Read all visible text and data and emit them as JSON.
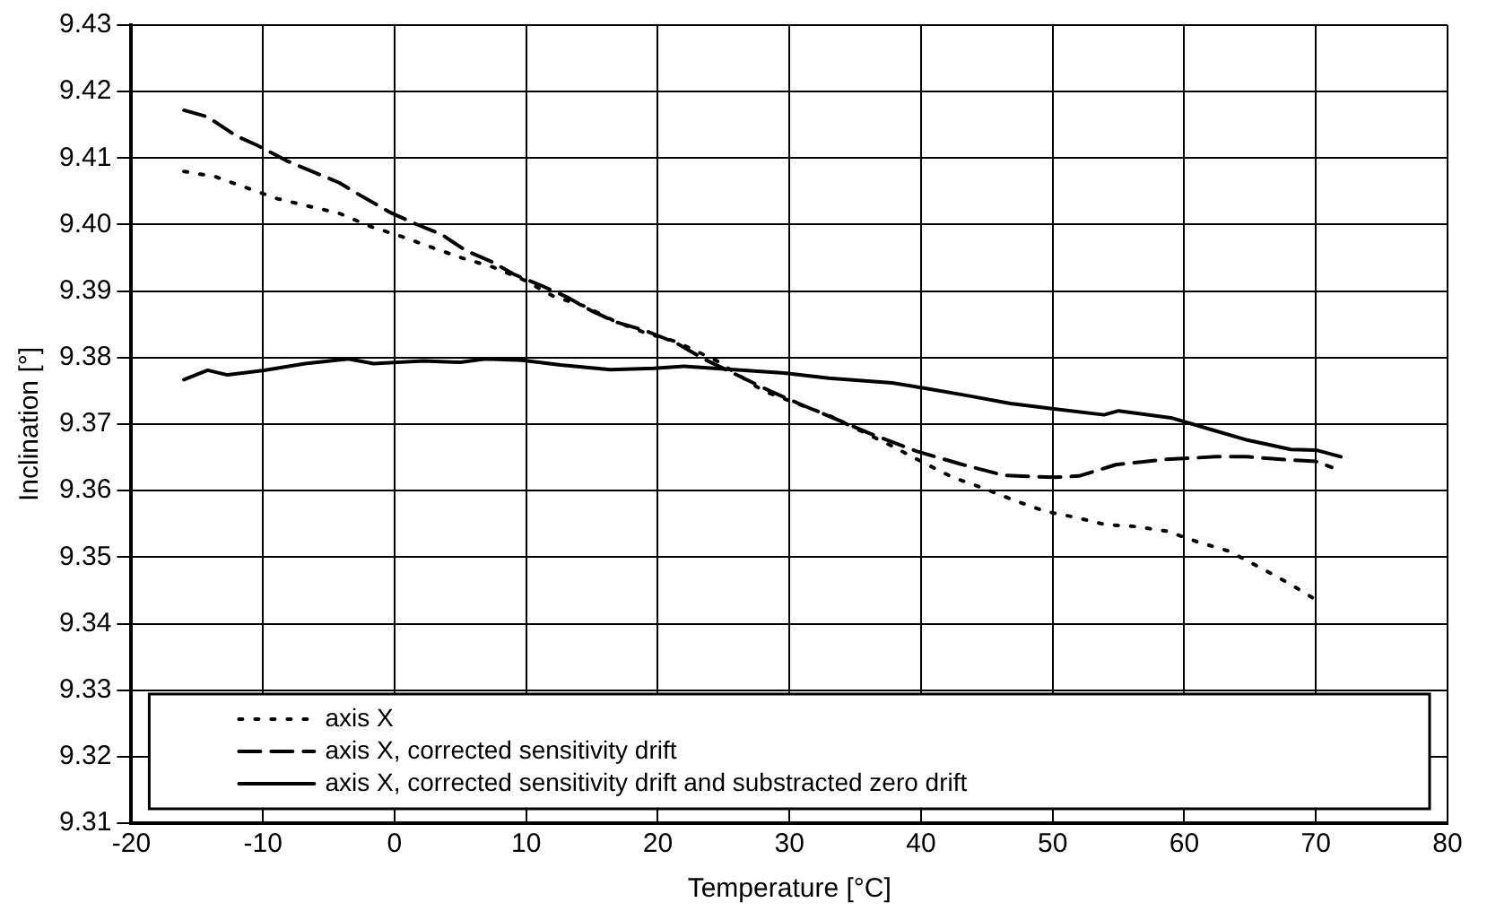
{
  "chart_data": {
    "type": "line",
    "xlabel": "Temperature [°C]",
    "ylabel": "Inclination [°]",
    "xlim": [
      -20,
      80
    ],
    "xticks": [
      -20,
      -10,
      0,
      10,
      20,
      30,
      40,
      50,
      60,
      70,
      80
    ],
    "ylim": [
      9.31,
      9.43
    ],
    "yticks": [
      9.31,
      9.32,
      9.33,
      9.34,
      9.35,
      9.36,
      9.37,
      9.38,
      9.39,
      {
        "value": 9.4,
        "label": "9.40"
      },
      9.41,
      9.42,
      9.43
    ],
    "grid": true,
    "legend": "bottom",
    "marker": "none",
    "series": [
      {
        "name": "axis X",
        "color": "#000000",
        "line_style": "dotted",
        "x": [
          -16,
          -13.6,
          -11.2,
          -8.9,
          -6.6,
          -4.2,
          -1.8,
          0.4,
          2.8,
          5.1,
          7.5,
          9.8,
          12.1,
          14.5,
          16.8,
          19.1,
          21.4,
          24.5,
          28,
          33,
          37.7,
          40,
          42.4,
          44.7,
          47,
          49.4,
          51.7,
          54,
          56.3,
          58.7,
          61,
          63.4,
          65.6,
          68,
          70.4
        ],
        "values": [
          9.408,
          9.4072,
          9.4055,
          9.4039,
          9.4028,
          9.4017,
          9.3997,
          9.3983,
          9.3966,
          9.395,
          9.3936,
          9.3917,
          9.3892,
          9.3877,
          9.3854,
          9.3837,
          9.3824,
          9.3795,
          9.375,
          9.3713,
          9.3668,
          9.3644,
          9.362,
          9.3604,
          9.3586,
          9.3569,
          9.356,
          9.3549,
          9.3546,
          9.3539,
          9.3523,
          9.3509,
          9.3486,
          9.346,
          9.3431
        ]
      },
      {
        "name": "axis X, corrected sensitivity drift",
        "color": "#000000",
        "line_style": "dashed",
        "x": [
          -16,
          -14.2,
          -12,
          -10.4,
          -8.2,
          -6.4,
          -4.2,
          -2.6,
          -0.3,
          1.6,
          3.6,
          5.4,
          7.3,
          9.1,
          11.2,
          13.1,
          15,
          16.9,
          19,
          21.4,
          23.5,
          28.5,
          30.7,
          33,
          36.1,
          39.7,
          43,
          46.3,
          50.1,
          52,
          54.8,
          58.6,
          62.4,
          64.7,
          68,
          70,
          71.2
        ],
        "values": [
          9.4172,
          9.4162,
          9.4133,
          9.4119,
          9.4096,
          9.4081,
          9.4063,
          9.4044,
          9.4018,
          9.4001,
          9.3985,
          9.3961,
          9.3945,
          9.3925,
          9.3908,
          9.3891,
          9.387,
          9.3853,
          9.3841,
          9.3822,
          9.3798,
          9.375,
          9.3731,
          9.3712,
          9.3686,
          9.3659,
          9.364,
          9.3623,
          9.362,
          9.3622,
          9.3639,
          9.3647,
          9.3651,
          9.3651,
          9.3646,
          9.3644,
          9.3635
        ]
      },
      {
        "name": "axis X, corrected sensitivity drift and substracted zero drift",
        "color": "#000000",
        "line_style": "solid",
        "x": [
          -16,
          -14.2,
          -12.7,
          -9.9,
          -6.8,
          -3.5,
          -1.6,
          2.2,
          5,
          6.9,
          9.7,
          12.6,
          16.4,
          19.7,
          22,
          25.8,
          29.6,
          33,
          37.8,
          40.6,
          43.5,
          46.8,
          50.1,
          53.9,
          55,
          59.1,
          61.5,
          64.8,
          68.1,
          70,
          71.9
        ],
        "values": [
          9.3767,
          9.3781,
          9.3774,
          9.3781,
          9.3791,
          9.3798,
          9.3791,
          9.3795,
          9.3793,
          9.3798,
          9.3796,
          9.3789,
          9.3782,
          9.3784,
          9.3787,
          9.3782,
          9.3777,
          9.3769,
          9.3762,
          9.3753,
          9.3743,
          9.3731,
          9.3723,
          9.3714,
          9.372,
          9.3709,
          9.3695,
          9.3676,
          9.3662,
          9.3661,
          9.3651
        ]
      }
    ]
  }
}
